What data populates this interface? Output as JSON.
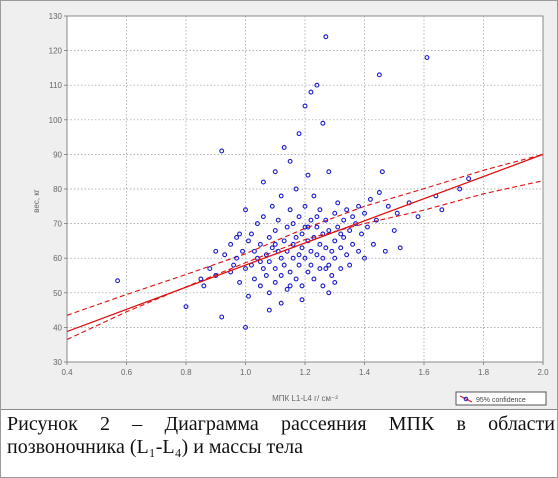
{
  "chart_data": {
    "type": "scatter",
    "xlabel": "МПК  L1-L4 г/ см⁻²",
    "ylabel": "вес, кг",
    "xlim": [
      0.4,
      2.0
    ],
    "ylim": [
      30,
      130
    ],
    "x_ticks": [
      "0.4",
      "0.6",
      "0.8",
      "1.0",
      "1.2",
      "1.4",
      "1.6",
      "1.8",
      "2.0"
    ],
    "y_ticks": [
      "30",
      "40",
      "50",
      "60",
      "70",
      "80",
      "90",
      "100",
      "110",
      "120",
      "130"
    ],
    "grid": true,
    "legend": {
      "position": "bottom-right",
      "label": "95% confidence"
    },
    "marker_color": "#1a1acc",
    "fit_color": "#dd1111",
    "regression": {
      "intercept": 26.0,
      "slope": 32.0
    },
    "confidence_band": {
      "x": [
        0.4,
        0.6,
        0.8,
        1.0,
        1.2,
        1.4,
        1.6,
        1.8,
        2.0
      ],
      "upper": [
        43.5,
        49.5,
        55.3,
        61.3,
        68.6,
        75.0,
        80.1,
        85.4,
        90.0
      ],
      "lower": [
        36.5,
        44.5,
        51.7,
        58.7,
        65.4,
        70.0,
        73.9,
        78.6,
        82.4
      ]
    },
    "points": [
      [
        0.57,
        53.5
      ],
      [
        0.8,
        46
      ],
      [
        0.85,
        54
      ],
      [
        0.86,
        52
      ],
      [
        0.88,
        57
      ],
      [
        0.9,
        62
      ],
      [
        0.9,
        55
      ],
      [
        0.92,
        43
      ],
      [
        0.92,
        91
      ],
      [
        0.93,
        61
      ],
      [
        0.95,
        56
      ],
      [
        0.95,
        64
      ],
      [
        0.96,
        58
      ],
      [
        0.97,
        66
      ],
      [
        0.97,
        60
      ],
      [
        0.98,
        53
      ],
      [
        0.99,
        62
      ],
      [
        1.0,
        74
      ],
      [
        1.0,
        57
      ],
      [
        1.0,
        40
      ],
      [
        1.01,
        65
      ],
      [
        1.01,
        49
      ],
      [
        1.02,
        67
      ],
      [
        1.02,
        58
      ],
      [
        1.03,
        62
      ],
      [
        1.03,
        54
      ],
      [
        1.04,
        70
      ],
      [
        1.04,
        60
      ],
      [
        1.05,
        52
      ],
      [
        1.05,
        64
      ],
      [
        1.06,
        57
      ],
      [
        1.06,
        72
      ],
      [
        1.06,
        82
      ],
      [
        1.07,
        61
      ],
      [
        1.07,
        55
      ],
      [
        1.08,
        66
      ],
      [
        1.08,
        59
      ],
      [
        1.08,
        50
      ],
      [
        1.09,
        75
      ],
      [
        1.09,
        63
      ],
      [
        1.1,
        68
      ],
      [
        1.1,
        57
      ],
      [
        1.1,
        85
      ],
      [
        1.1,
        53
      ],
      [
        1.11,
        62
      ],
      [
        1.11,
        71
      ],
      [
        1.12,
        60
      ],
      [
        1.12,
        78
      ],
      [
        1.12,
        55
      ],
      [
        1.13,
        65
      ],
      [
        1.13,
        92
      ],
      [
        1.13,
        58
      ],
      [
        1.14,
        69
      ],
      [
        1.14,
        62
      ],
      [
        1.14,
        51
      ],
      [
        1.15,
        74
      ],
      [
        1.15,
        56
      ],
      [
        1.15,
        88
      ],
      [
        1.16,
        64
      ],
      [
        1.16,
        60
      ],
      [
        1.16,
        70
      ],
      [
        1.17,
        66
      ],
      [
        1.17,
        54
      ],
      [
        1.17,
        80
      ],
      [
        1.18,
        61
      ],
      [
        1.18,
        72
      ],
      [
        1.18,
        58
      ],
      [
        1.18,
        96
      ],
      [
        1.19,
        67
      ],
      [
        1.19,
        63
      ],
      [
        1.19,
        52
      ],
      [
        1.2,
        75
      ],
      [
        1.2,
        60
      ],
      [
        1.2,
        69
      ],
      [
        1.2,
        104
      ],
      [
        1.21,
        56
      ],
      [
        1.21,
        65
      ],
      [
        1.21,
        84
      ],
      [
        1.22,
        62
      ],
      [
        1.22,
        71
      ],
      [
        1.22,
        58
      ],
      [
        1.22,
        108
      ],
      [
        1.23,
        66
      ],
      [
        1.23,
        54
      ],
      [
        1.23,
        78
      ],
      [
        1.24,
        61
      ],
      [
        1.24,
        110
      ],
      [
        1.24,
        69
      ],
      [
        1.25,
        64
      ],
      [
        1.25,
        57
      ],
      [
        1.25,
        74
      ],
      [
        1.26,
        60
      ],
      [
        1.26,
        67
      ],
      [
        1.26,
        52
      ],
      [
        1.26,
        99
      ],
      [
        1.27,
        124
      ],
      [
        1.27,
        63
      ],
      [
        1.27,
        71
      ],
      [
        1.28,
        58
      ],
      [
        1.28,
        68
      ],
      [
        1.28,
        85
      ],
      [
        1.29,
        62
      ],
      [
        1.29,
        55
      ],
      [
        1.3,
        73
      ],
      [
        1.3,
        65
      ],
      [
        1.3,
        60
      ],
      [
        1.31,
        69
      ],
      [
        1.31,
        76
      ],
      [
        1.32,
        63
      ],
      [
        1.32,
        57
      ],
      [
        1.33,
        71
      ],
      [
        1.33,
        66
      ],
      [
        1.34,
        61
      ],
      [
        1.34,
        74
      ],
      [
        1.35,
        68
      ],
      [
        1.35,
        58
      ],
      [
        1.36,
        64
      ],
      [
        1.36,
        72
      ],
      [
        1.37,
        70
      ],
      [
        1.38,
        62
      ],
      [
        1.38,
        75
      ],
      [
        1.39,
        67
      ],
      [
        1.4,
        73
      ],
      [
        1.4,
        60
      ],
      [
        1.41,
        69
      ],
      [
        1.42,
        77
      ],
      [
        1.43,
        64
      ],
      [
        1.44,
        71
      ],
      [
        1.45,
        113
      ],
      [
        1.45,
        79
      ],
      [
        1.46,
        85
      ],
      [
        1.47,
        62
      ],
      [
        1.48,
        75
      ],
      [
        1.5,
        68
      ],
      [
        1.51,
        73
      ],
      [
        1.52,
        63
      ],
      [
        1.55,
        76
      ],
      [
        1.58,
        72
      ],
      [
        1.61,
        118
      ],
      [
        1.64,
        78
      ],
      [
        1.66,
        74
      ],
      [
        1.72,
        80
      ],
      [
        1.75,
        83
      ],
      [
        1.27,
        57
      ],
      [
        1.3,
        53
      ],
      [
        1.05,
        59
      ],
      [
        1.15,
        52
      ],
      [
        1.1,
        64
      ],
      [
        1.24,
        72
      ],
      [
        1.21,
        69
      ],
      [
        1.32,
        67
      ],
      [
        0.98,
        67
      ],
      [
        1.12,
        47
      ],
      [
        1.08,
        45
      ],
      [
        1.19,
        48
      ],
      [
        1.28,
        50
      ]
    ]
  },
  "caption": {
    "line1": "Рисунок  2  –  Диаграмма  рассеяния  МПК  в  области",
    "line2": "позвоночника (L₁-L₄) и массы тела"
  }
}
